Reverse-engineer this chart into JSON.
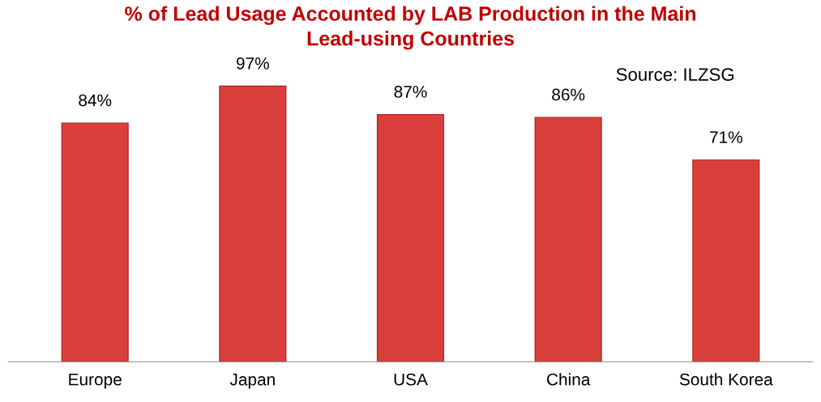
{
  "chart_data": {
    "type": "bar",
    "title": "% of Lead Usage Accounted by LAB Production in the Main\nLead-using Countries",
    "categories": [
      "Europe",
      "Japan",
      "USA",
      "China",
      "South Korea"
    ],
    "values": [
      84,
      97,
      87,
      86,
      71
    ],
    "value_labels": [
      "84%",
      "97%",
      "87%",
      "86%",
      "71%"
    ],
    "color": "#d9403c",
    "tick_labels": "x",
    "annotations": [
      "Source: ILZSG"
    ]
  }
}
